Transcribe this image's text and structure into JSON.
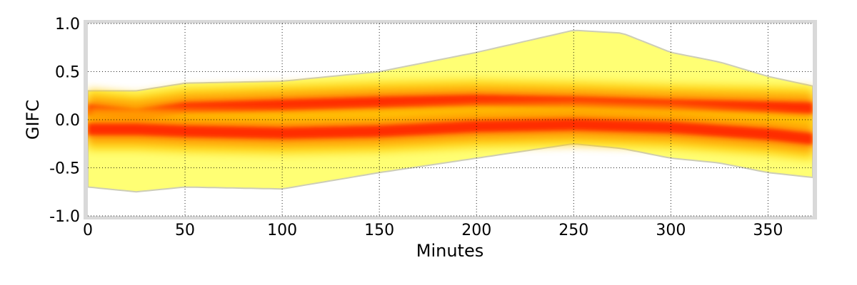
{
  "chart_data": {
    "type": "heatmap",
    "title": "",
    "xlabel": "Minutes",
    "ylabel": "GIFC",
    "xlim": [
      0,
      373
    ],
    "ylim": [
      -1.0,
      1.0
    ],
    "x_ticks": [
      0,
      50,
      100,
      150,
      200,
      250,
      300,
      350
    ],
    "x_tick_labels": [
      "0",
      "50",
      "100",
      "150",
      "200",
      "250",
      "300",
      "350"
    ],
    "y_ticks": [
      1.0,
      0.5,
      0.0,
      -0.5,
      -1.0
    ],
    "y_tick_labels": [
      "1.0",
      "0.5",
      "0.0",
      "-0.5",
      "-1.0"
    ],
    "grid": true,
    "colormap": [
      "#ffffff",
      "#ffff66",
      "#ffcc00",
      "#ff8800",
      "#ff2200"
    ],
    "frame_color": "#d9d9d9",
    "outline_color": "#c8c8b0",
    "density_bands": [
      {
        "name": "upper",
        "x": [
          0,
          25,
          50,
          100,
          150,
          200,
          250,
          300,
          350,
          373
        ],
        "center": [
          0.1,
          0.05,
          0.12,
          0.15,
          0.18,
          0.2,
          0.18,
          0.15,
          0.13,
          0.12
        ]
      },
      {
        "name": "lower",
        "x": [
          0,
          25,
          50,
          100,
          150,
          200,
          250,
          300,
          350,
          373
        ],
        "center": [
          -0.1,
          -0.1,
          -0.12,
          -0.14,
          -0.12,
          -0.07,
          -0.05,
          -0.08,
          -0.15,
          -0.2
        ]
      }
    ],
    "envelope": {
      "x": [
        0,
        25,
        50,
        100,
        150,
        200,
        250,
        275,
        300,
        325,
        350,
        373
      ],
      "upper": [
        0.3,
        0.3,
        0.38,
        0.4,
        0.5,
        0.7,
        0.93,
        0.9,
        0.7,
        0.6,
        0.45,
        0.35
      ],
      "lower": [
        -0.7,
        -0.75,
        -0.7,
        -0.72,
        -0.55,
        -0.4,
        -0.25,
        -0.3,
        -0.4,
        -0.45,
        -0.55,
        -0.6
      ]
    }
  }
}
